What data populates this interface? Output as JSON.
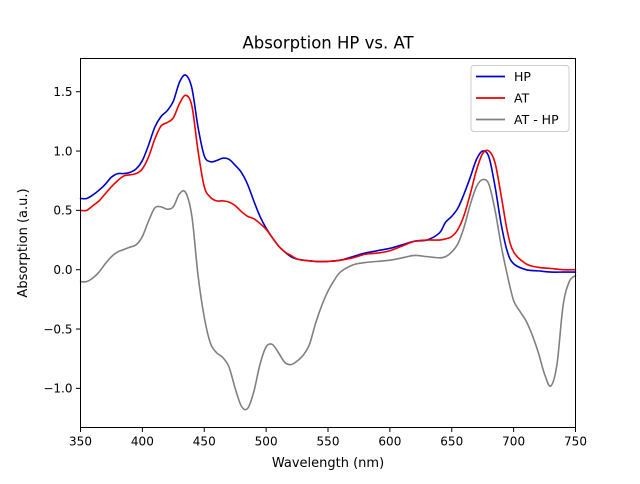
{
  "chart_data": {
    "type": "line",
    "title": "Absorption HP vs. AT",
    "xlabel": "Wavelength (nm)",
    "ylabel": "Absorption (a.u.)",
    "xlim": [
      350,
      750
    ],
    "ylim": [
      -1.33,
      1.78
    ],
    "xticks": [
      350,
      400,
      450,
      500,
      550,
      600,
      650,
      700,
      750
    ],
    "yticks": [
      -1.0,
      -0.5,
      0.0,
      0.5,
      1.0,
      1.5
    ],
    "grid": false,
    "legend": {
      "placement": "upper-right"
    },
    "series": [
      {
        "name": "HP",
        "color": "#0000cc",
        "x": [
          350,
          355,
          360,
          365,
          370,
          375,
          380,
          385,
          390,
          395,
          400,
          405,
          410,
          415,
          420,
          425,
          430,
          435,
          440,
          445,
          450,
          455,
          460,
          465,
          470,
          475,
          480,
          485,
          490,
          495,
          500,
          505,
          510,
          515,
          520,
          525,
          530,
          540,
          550,
          560,
          570,
          580,
          590,
          600,
          610,
          620,
          630,
          640,
          645,
          650,
          655,
          660,
          665,
          670,
          675,
          680,
          685,
          690,
          695,
          700,
          710,
          720,
          730,
          740,
          750
        ],
        "y": [
          0.6,
          0.6,
          0.63,
          0.67,
          0.72,
          0.78,
          0.81,
          0.81,
          0.82,
          0.85,
          0.92,
          1.05,
          1.2,
          1.29,
          1.34,
          1.42,
          1.58,
          1.64,
          1.53,
          1.2,
          0.96,
          0.91,
          0.92,
          0.94,
          0.93,
          0.88,
          0.82,
          0.72,
          0.58,
          0.45,
          0.35,
          0.27,
          0.2,
          0.15,
          0.11,
          0.09,
          0.08,
          0.07,
          0.07,
          0.08,
          0.11,
          0.14,
          0.16,
          0.18,
          0.21,
          0.24,
          0.25,
          0.31,
          0.4,
          0.45,
          0.52,
          0.64,
          0.78,
          0.93,
          1.0,
          0.95,
          0.7,
          0.38,
          0.15,
          0.05,
          0.0,
          -0.01,
          -0.02,
          -0.02,
          -0.02
        ]
      },
      {
        "name": "AT",
        "color": "#ee0000",
        "x": [
          350,
          355,
          360,
          365,
          370,
          375,
          380,
          385,
          390,
          395,
          400,
          405,
          410,
          415,
          420,
          425,
          430,
          435,
          440,
          445,
          450,
          455,
          460,
          465,
          470,
          475,
          480,
          485,
          490,
          495,
          500,
          505,
          510,
          515,
          520,
          525,
          530,
          540,
          550,
          560,
          570,
          580,
          590,
          600,
          610,
          620,
          630,
          640,
          645,
          650,
          655,
          660,
          665,
          670,
          675,
          680,
          685,
          690,
          695,
          700,
          710,
          720,
          730,
          740,
          750
        ],
        "y": [
          0.5,
          0.5,
          0.54,
          0.58,
          0.64,
          0.7,
          0.75,
          0.79,
          0.8,
          0.81,
          0.85,
          0.95,
          1.1,
          1.21,
          1.24,
          1.28,
          1.4,
          1.47,
          1.38,
          1.0,
          0.7,
          0.61,
          0.58,
          0.58,
          0.57,
          0.54,
          0.49,
          0.45,
          0.43,
          0.39,
          0.34,
          0.27,
          0.2,
          0.15,
          0.12,
          0.09,
          0.08,
          0.07,
          0.07,
          0.08,
          0.1,
          0.13,
          0.14,
          0.16,
          0.2,
          0.24,
          0.25,
          0.25,
          0.26,
          0.28,
          0.34,
          0.46,
          0.64,
          0.84,
          0.98,
          1.0,
          0.9,
          0.62,
          0.32,
          0.15,
          0.05,
          0.02,
          0.01,
          0.0,
          0.0
        ]
      },
      {
        "name": "AT - HP",
        "color": "#808080",
        "x": [
          350,
          355,
          360,
          365,
          370,
          375,
          380,
          385,
          390,
          395,
          400,
          405,
          410,
          415,
          420,
          425,
          430,
          435,
          440,
          445,
          450,
          455,
          460,
          465,
          470,
          475,
          480,
          485,
          490,
          495,
          500,
          505,
          510,
          515,
          520,
          525,
          530,
          535,
          540,
          545,
          550,
          555,
          560,
          570,
          580,
          590,
          600,
          610,
          620,
          630,
          640,
          645,
          650,
          655,
          660,
          665,
          670,
          675,
          680,
          685,
          690,
          695,
          700,
          705,
          710,
          715,
          720,
          725,
          730,
          735,
          740,
          745,
          750
        ],
        "y": [
          -0.1,
          -0.1,
          -0.07,
          -0.02,
          0.05,
          0.11,
          0.15,
          0.17,
          0.19,
          0.21,
          0.28,
          0.41,
          0.52,
          0.53,
          0.51,
          0.53,
          0.64,
          0.65,
          0.45,
          -0.05,
          -0.4,
          -0.62,
          -0.7,
          -0.74,
          -0.82,
          -1.0,
          -1.15,
          -1.17,
          -1.03,
          -0.8,
          -0.65,
          -0.63,
          -0.7,
          -0.78,
          -0.8,
          -0.77,
          -0.72,
          -0.63,
          -0.45,
          -0.3,
          -0.18,
          -0.09,
          -0.02,
          0.04,
          0.06,
          0.07,
          0.08,
          0.1,
          0.12,
          0.11,
          0.1,
          0.11,
          0.15,
          0.22,
          0.36,
          0.55,
          0.7,
          0.76,
          0.72,
          0.5,
          0.2,
          -0.05,
          -0.26,
          -0.35,
          -0.43,
          -0.55,
          -0.7,
          -0.88,
          -0.98,
          -0.8,
          -0.3,
          -0.1,
          -0.05
        ]
      }
    ]
  }
}
